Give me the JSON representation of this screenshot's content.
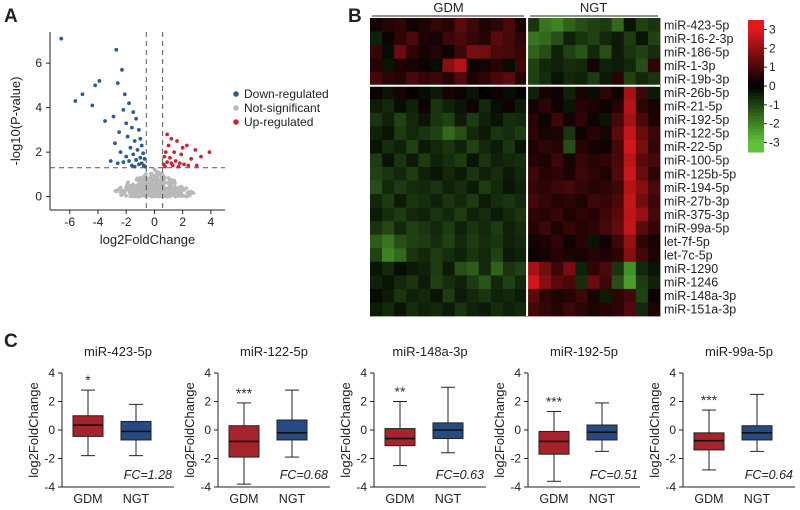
{
  "panels": {
    "a": "A",
    "b": "B",
    "c": "C"
  },
  "colors": {
    "down": "#2e5d92",
    "ns": "#b9b9b9",
    "up": "#c42a33",
    "box_gdm": "#a5242c",
    "box_ngt": "#274a82"
  },
  "chart_data": [
    {
      "type": "scatter",
      "panel": "A",
      "xlabel": "log2FoldChange",
      "ylabel": "-log10(P-value)",
      "xlim": [
        -7.4,
        5
      ],
      "ylim": [
        -0.6,
        7.4
      ],
      "xticks": [
        -6,
        -4,
        -2,
        0,
        2,
        4
      ],
      "yticks": [
        0,
        2,
        4,
        6
      ],
      "thresholds": {
        "x": [
          -0.58,
          0.58
        ],
        "y": 1.3
      },
      "legend": [
        "Down-regulated",
        "Not-significant",
        "Up-regulated"
      ],
      "legend_position": "right",
      "series": [
        {
          "name": "Down-regulated",
          "points": [
            [
              -6.6,
              7.1
            ],
            [
              -3.9,
              5.2
            ],
            [
              -4.2,
              5.0
            ],
            [
              -5.1,
              4.6
            ],
            [
              -5.6,
              4.3
            ],
            [
              -4.4,
              4.1
            ],
            [
              -2.7,
              6.6
            ],
            [
              -2.3,
              5.7
            ],
            [
              -2.6,
              5.1
            ],
            [
              -2.1,
              4.6
            ],
            [
              -1.8,
              4.2
            ],
            [
              -2.2,
              3.9
            ],
            [
              -1.5,
              3.8
            ],
            [
              -2.9,
              3.6
            ],
            [
              -1.3,
              3.5
            ],
            [
              -2.0,
              3.3
            ],
            [
              -1.6,
              3.1
            ],
            [
              -3.5,
              3.4
            ],
            [
              -1.1,
              3.0
            ],
            [
              -2.5,
              2.9
            ],
            [
              -1.9,
              2.7
            ],
            [
              -1.0,
              2.6
            ],
            [
              -1.4,
              2.5
            ],
            [
              -2.8,
              2.4
            ],
            [
              -0.9,
              2.3
            ],
            [
              -1.7,
              2.2
            ],
            [
              -1.2,
              2.1
            ],
            [
              -2.4,
              2.0
            ],
            [
              -0.8,
              1.95
            ],
            [
              -1.5,
              1.9
            ],
            [
              -2.0,
              1.8
            ],
            [
              -1.0,
              1.75
            ],
            [
              -0.7,
              1.7
            ],
            [
              -1.3,
              1.65
            ],
            [
              -1.8,
              1.6
            ],
            [
              -2.2,
              1.55
            ],
            [
              -0.9,
              1.5
            ],
            [
              -1.1,
              1.45
            ],
            [
              -0.75,
              1.4
            ],
            [
              -1.6,
              1.4
            ],
            [
              -3.1,
              1.6
            ],
            [
              -2.6,
              1.5
            ],
            [
              -0.65,
              1.35
            ],
            [
              -1.4,
              1.35
            ]
          ]
        },
        {
          "name": "Up-regulated",
          "points": [
            [
              0.9,
              2.8
            ],
            [
              1.2,
              2.6
            ],
            [
              1.6,
              2.5
            ],
            [
              1.0,
              2.3
            ],
            [
              2.3,
              2.3
            ],
            [
              2.9,
              2.1
            ],
            [
              1.4,
              2.0
            ],
            [
              0.8,
              2.0
            ],
            [
              1.9,
              1.9
            ],
            [
              0.7,
              1.8
            ],
            [
              1.1,
              1.75
            ],
            [
              2.6,
              1.7
            ],
            [
              3.3,
              1.8
            ],
            [
              3.9,
              2.0
            ],
            [
              1.5,
              1.6
            ],
            [
              0.9,
              1.55
            ],
            [
              1.8,
              1.5
            ],
            [
              2.1,
              1.45
            ],
            [
              0.65,
              1.45
            ],
            [
              1.3,
              1.4
            ],
            [
              2.4,
              1.4
            ],
            [
              3.0,
              1.4
            ],
            [
              0.75,
              1.35
            ],
            [
              1.7,
              1.35
            ],
            [
              2.0,
              2.2
            ],
            [
              1.2,
              1.5
            ]
          ]
        }
      ]
    },
    {
      "type": "heatmap",
      "panel": "B",
      "groups": [
        "GDM",
        "NGT"
      ],
      "rows": [
        "miR-423-5p",
        "miR-16-2-3p",
        "miR-186-5p",
        "miR-1-3p",
        "miR-19b-3p",
        "miR-26b-5p",
        "miR-21-5p",
        "miR-192-5p",
        "miR-122-5p",
        "miR-22-5p",
        "miR-100-5p",
        "miR-125b-5p",
        "miR-194-5p",
        "miR-27b-3p",
        "miR-375-3p",
        "miR-99a-5p",
        "let-7f-5p",
        "let-7c-5p",
        "miR-1290",
        "miR-1246",
        "miR-148a-3p",
        "miR-151a-3p"
      ],
      "row_split_after": 5,
      "colorbar": {
        "ticks": [
          3,
          2,
          1,
          0,
          -1,
          -2,
          -3
        ],
        "range": [
          -3.5,
          3.5
        ]
      },
      "values": [
        [
          0.3,
          0.5,
          0.6,
          0.2,
          0.4,
          0.7,
          0.5,
          1.2,
          0.8,
          0.4,
          0.6,
          1.0,
          0.3,
          -0.8,
          -1.8,
          -2.0,
          -1.5,
          -1.2,
          -1.0,
          -0.9,
          -1.6,
          -0.3,
          -1.0,
          -0.8
        ],
        [
          -0.5,
          0.2,
          0.6,
          1.0,
          0.4,
          0.3,
          0.8,
          1.0,
          0.7,
          0.5,
          1.2,
          0.9,
          0.6,
          -1.8,
          -1.6,
          -1.2,
          -0.5,
          -0.8,
          -1.0,
          -0.6,
          -0.4,
          -0.9,
          -0.3,
          -1.0
        ],
        [
          0.7,
          -0.2,
          1.4,
          0.6,
          0.3,
          0.5,
          0.2,
          0.8,
          1.6,
          1.5,
          1.0,
          0.9,
          0.7,
          -1.5,
          -1.2,
          -0.5,
          -1.0,
          -1.3,
          -0.6,
          -1.2,
          -0.4,
          -0.8,
          -1.0,
          -0.7
        ],
        [
          0.5,
          -0.3,
          0.4,
          0.3,
          0.2,
          -0.2,
          1.8,
          2.4,
          0.2,
          0.3,
          0.5,
          -0.2,
          0.8,
          -1.0,
          -0.6,
          -0.5,
          -0.7,
          -0.6,
          0.3,
          -0.5,
          -0.4,
          -0.6,
          -1.2,
          0.6
        ],
        [
          0.9,
          0.6,
          0.5,
          1.0,
          0.7,
          0.8,
          0.5,
          1.1,
          0.4,
          0.6,
          1.0,
          1.2,
          0.5,
          -1.0,
          -0.7,
          -0.3,
          -0.6,
          -0.5,
          -0.9,
          -0.4,
          0.5,
          -1.0,
          -0.6,
          -0.8
        ],
        [
          0.2,
          -0.3,
          0.3,
          0.1,
          -0.2,
          -0.4,
          0.3,
          0.2,
          -0.3,
          0.0,
          0.2,
          -0.2,
          -0.1,
          -0.5,
          0.3,
          0.2,
          -0.5,
          0.3,
          -0.2,
          0.6,
          0.2,
          2.2,
          0.8,
          -0.4
        ],
        [
          -0.4,
          -0.6,
          -0.2,
          -0.5,
          0.2,
          -0.8,
          -0.5,
          -0.3,
          0.2,
          -0.6,
          -0.2,
          0.2,
          -0.4,
          0.3,
          0.6,
          0.2,
          -0.3,
          0.5,
          0.4,
          0.2,
          0.5,
          2.4,
          0.6,
          0.3
        ],
        [
          -0.8,
          -0.5,
          -1.0,
          -0.6,
          -0.3,
          -0.8,
          -1.0,
          -0.4,
          -0.9,
          -0.5,
          -0.3,
          -0.7,
          -0.6,
          0.5,
          0.2,
          0.8,
          0.3,
          0.6,
          0.2,
          -0.3,
          0.9,
          2.2,
          1.0,
          0.4
        ],
        [
          -0.5,
          -0.3,
          -0.9,
          -0.6,
          -0.8,
          -1.0,
          -1.6,
          -1.2,
          -0.6,
          -0.4,
          -0.8,
          -0.7,
          -0.9,
          0.6,
          0.3,
          0.4,
          -0.8,
          0.2,
          0.5,
          0.3,
          1.2,
          2.6,
          1.4,
          0.8
        ],
        [
          -0.3,
          -0.7,
          -0.5,
          -1.0,
          -0.4,
          -0.6,
          -0.8,
          -0.5,
          -1.0,
          -0.6,
          -0.4,
          -0.8,
          -0.3,
          0.4,
          0.6,
          0.5,
          -1.2,
          0.5,
          0.3,
          0.2,
          0.9,
          2.8,
          1.6,
          0.7
        ],
        [
          -0.9,
          -0.3,
          -0.8,
          -0.4,
          -0.9,
          -0.5,
          -0.7,
          -0.9,
          -0.3,
          -0.8,
          -0.5,
          -0.6,
          -0.7,
          0.5,
          0.4,
          0.8,
          0.3,
          0.7,
          0.5,
          0.6,
          1.0,
          2.5,
          1.2,
          0.9
        ],
        [
          -1.0,
          -0.8,
          -0.6,
          -0.9,
          -0.5,
          -0.3,
          -0.6,
          -0.4,
          -0.8,
          -0.5,
          -0.7,
          -0.4,
          -0.6,
          0.8,
          0.5,
          0.6,
          0.4,
          0.8,
          0.6,
          0.4,
          1.1,
          2.7,
          1.4,
          0.6
        ],
        [
          -1.2,
          -0.6,
          -0.9,
          -0.7,
          -0.6,
          -0.8,
          -0.5,
          -0.7,
          -0.4,
          -0.9,
          -0.6,
          -0.3,
          -0.5,
          0.7,
          0.6,
          0.8,
          0.9,
          0.7,
          0.5,
          0.6,
          0.8,
          2.4,
          1.8,
          1.0
        ],
        [
          -0.6,
          -0.9,
          -0.4,
          -0.8,
          -0.7,
          -0.5,
          -0.8,
          -0.6,
          -0.9,
          -0.4,
          -0.7,
          -0.8,
          -0.6,
          0.9,
          0.7,
          0.5,
          0.6,
          0.4,
          0.8,
          0.7,
          1.0,
          2.6,
          1.5,
          0.8
        ],
        [
          -0.4,
          -0.7,
          -0.9,
          -0.6,
          -0.5,
          -0.8,
          -0.6,
          -0.9,
          -0.5,
          -0.7,
          -0.4,
          -0.6,
          -0.8,
          0.6,
          0.5,
          0.7,
          0.4,
          0.6,
          0.5,
          0.8,
          1.2,
          2.5,
          2.0,
          0.9
        ],
        [
          -0.8,
          -1.1,
          -0.6,
          -1.0,
          -0.8,
          -0.6,
          -0.9,
          -0.5,
          -0.8,
          -0.6,
          -0.9,
          -0.5,
          -0.7,
          0.5,
          0.8,
          0.4,
          0.7,
          0.5,
          0.6,
          0.9,
          1.3,
          2.6,
          1.2,
          0.7
        ],
        [
          -1.4,
          -1.8,
          -1.2,
          -1.0,
          -0.9,
          -0.7,
          -1.0,
          -0.6,
          -0.9,
          -0.7,
          -0.8,
          -0.5,
          -0.6,
          0.3,
          0.4,
          0.6,
          0.2,
          0.5,
          -0.3,
          0.2,
          0.8,
          2.0,
          0.6,
          0.3
        ],
        [
          -1.0,
          -2.0,
          -1.6,
          -0.8,
          -0.6,
          -0.9,
          -0.7,
          -0.5,
          -0.8,
          -0.6,
          -1.0,
          -0.4,
          -0.5,
          0.2,
          0.3,
          0.5,
          0.4,
          0.3,
          0.5,
          0.4,
          0.6,
          1.8,
          0.9,
          0.4
        ],
        [
          -0.3,
          -0.6,
          -0.2,
          -0.4,
          -0.5,
          -0.9,
          -0.4,
          -1.2,
          -1.4,
          -0.6,
          -1.5,
          -0.8,
          -1.0,
          2.2,
          1.5,
          0.8,
          1.6,
          -0.5,
          0.6,
          1.0,
          -0.8,
          -2.2,
          -0.6,
          -0.3
        ],
        [
          -0.5,
          -0.3,
          -0.6,
          -0.8,
          -0.4,
          -1.0,
          -0.7,
          -0.5,
          -0.9,
          -1.3,
          -0.6,
          -1.0,
          -0.6,
          2.8,
          1.8,
          1.2,
          1.0,
          -0.7,
          1.4,
          0.8,
          -1.2,
          -2.4,
          -0.9,
          -0.5
        ],
        [
          -0.2,
          -0.4,
          -0.8,
          -0.5,
          -0.6,
          -0.3,
          -0.9,
          -0.4,
          -0.6,
          -0.8,
          -0.5,
          -0.6,
          -0.4,
          1.2,
          0.6,
          0.4,
          0.5,
          0.8,
          0.3,
          -0.4,
          0.6,
          0.9,
          -1.0,
          0.2
        ],
        [
          -0.4,
          -0.6,
          -0.3,
          -0.7,
          -0.5,
          -0.6,
          -0.4,
          -0.8,
          -0.5,
          -0.4,
          -0.7,
          -0.5,
          -0.6,
          0.9,
          0.7,
          0.5,
          0.8,
          0.6,
          0.4,
          0.5,
          0.6,
          1.1,
          -0.6,
          0.4
        ]
      ]
    },
    {
      "type": "box",
      "panel": "C",
      "title": "miR-423-5p",
      "ylabel": "log2FoldChange",
      "ylim": [
        -4,
        4
      ],
      "yticks": [
        -4,
        -2,
        0,
        2,
        4
      ],
      "categories": [
        "GDM",
        "NGT"
      ],
      "boxes": [
        {
          "min": -1.8,
          "q1": -0.45,
          "median": 0.35,
          "q3": 1.0,
          "max": 2.8
        },
        {
          "min": -1.8,
          "q1": -0.7,
          "median": -0.1,
          "q3": 0.6,
          "max": 1.8
        }
      ],
      "significance": "*",
      "fc_label": "FC=1.28"
    },
    {
      "type": "box",
      "panel": "C",
      "title": "miR-122-5p",
      "ylabel": "log2FoldChange",
      "ylim": [
        -4,
        4
      ],
      "yticks": [
        -4,
        -2,
        0,
        2,
        4
      ],
      "categories": [
        "GDM",
        "NGT"
      ],
      "boxes": [
        {
          "min": -3.8,
          "q1": -1.9,
          "median": -0.8,
          "q3": 0.3,
          "max": 1.9
        },
        {
          "min": -1.9,
          "q1": -0.7,
          "median": -0.2,
          "q3": 0.7,
          "max": 2.8
        }
      ],
      "significance": "***",
      "fc_label": "FC=0.68"
    },
    {
      "type": "box",
      "panel": "C",
      "title": "miR-148a-3p",
      "ylabel": "log2FoldChange",
      "ylim": [
        -4,
        4
      ],
      "yticks": [
        -4,
        -2,
        0,
        2,
        4
      ],
      "categories": [
        "GDM",
        "NGT"
      ],
      "boxes": [
        {
          "min": -2.5,
          "q1": -1.1,
          "median": -0.6,
          "q3": 0.1,
          "max": 2.0
        },
        {
          "min": -1.6,
          "q1": -0.6,
          "median": 0.0,
          "q3": 0.5,
          "max": 3.0
        }
      ],
      "significance": "**",
      "fc_label": "FC=0.63"
    },
    {
      "type": "box",
      "panel": "C",
      "title": "miR-192-5p",
      "ylabel": "log2FoldChange",
      "ylim": [
        -4,
        4
      ],
      "yticks": [
        -4,
        -2,
        0,
        2,
        4
      ],
      "categories": [
        "GDM",
        "NGT"
      ],
      "boxes": [
        {
          "min": -3.6,
          "q1": -1.7,
          "median": -0.8,
          "q3": -0.1,
          "max": 1.3
        },
        {
          "min": -1.5,
          "q1": -0.7,
          "median": -0.15,
          "q3": 0.35,
          "max": 1.9
        }
      ],
      "significance": "***",
      "fc_label": "FC=0.51"
    },
    {
      "type": "box",
      "panel": "C",
      "title": "miR-99a-5p",
      "ylabel": "log2FoldChange",
      "ylim": [
        -4,
        4
      ],
      "yticks": [
        -4,
        -2,
        0,
        2,
        4
      ],
      "categories": [
        "GDM",
        "NGT"
      ],
      "boxes": [
        {
          "min": -2.8,
          "q1": -1.4,
          "median": -0.75,
          "q3": -0.2,
          "max": 1.4
        },
        {
          "min": -1.5,
          "q1": -0.7,
          "median": -0.2,
          "q3": 0.3,
          "max": 2.5
        }
      ],
      "significance": "***",
      "fc_label": "FC=0.64"
    }
  ]
}
